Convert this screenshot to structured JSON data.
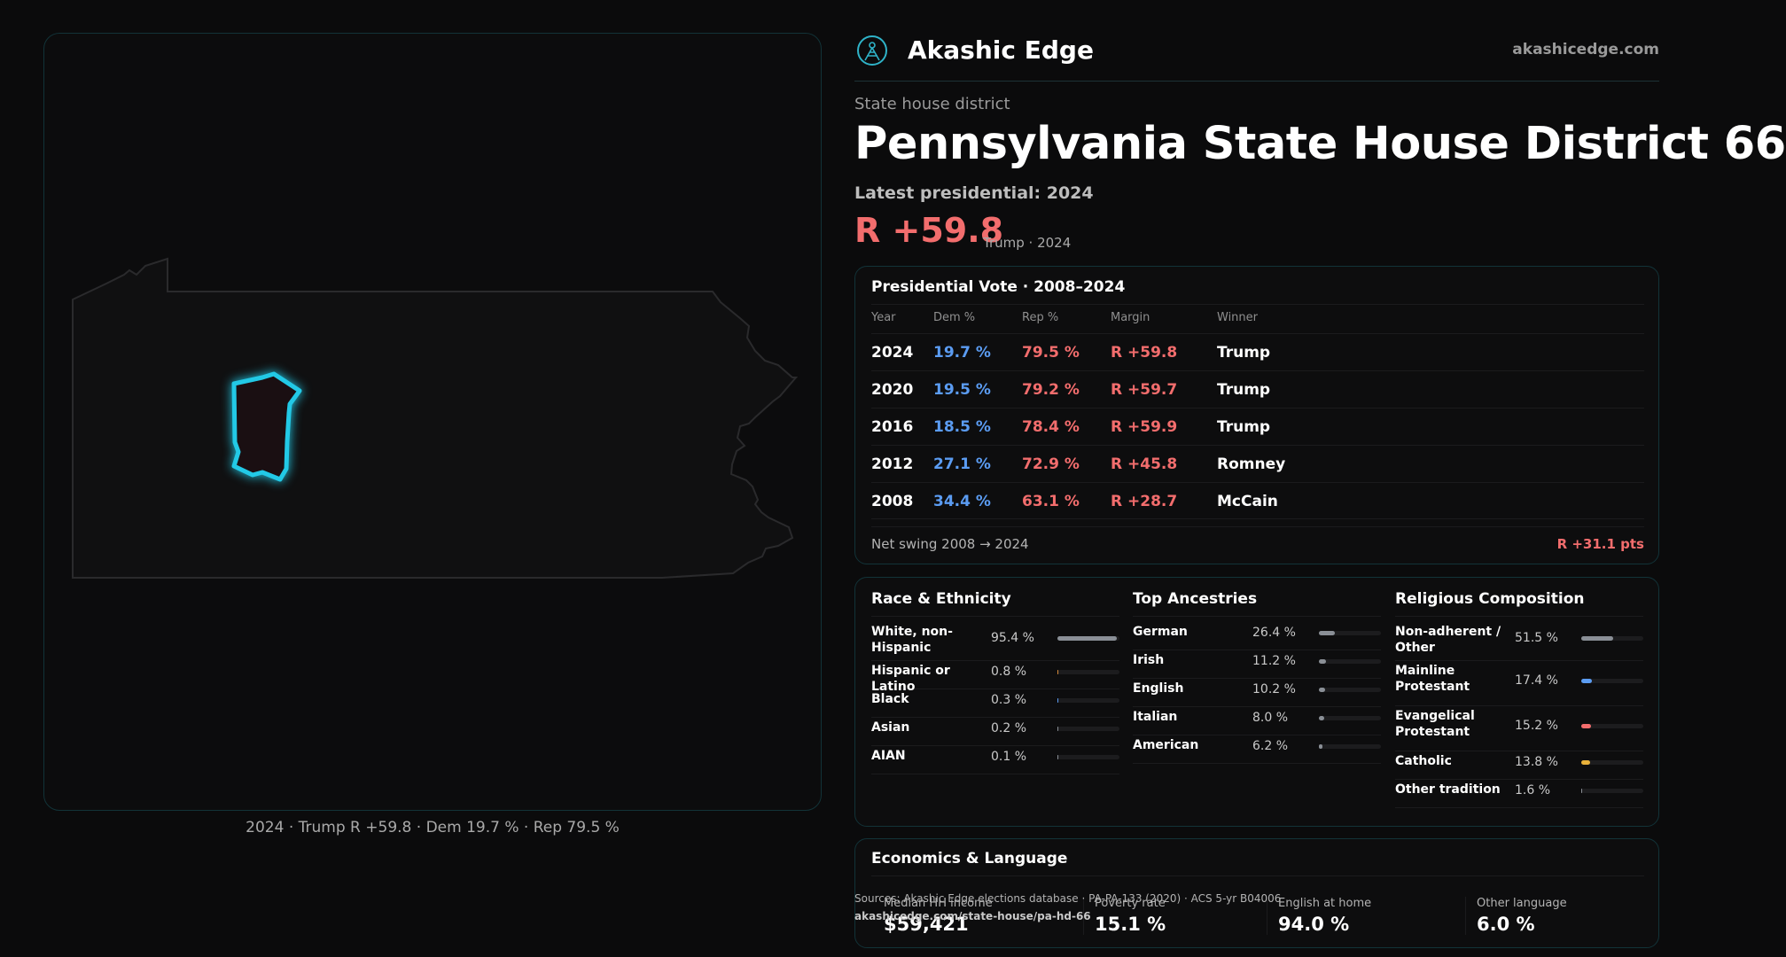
{
  "map": {
    "caption": "2024 · Trump R +59.8 · Dem 19.7 % · Rep 79.5 %",
    "colors": {
      "district_stroke": "#22c9e6",
      "district_fill": "#1a0f12",
      "state_stroke": "#2a2a2c"
    }
  },
  "brand": {
    "name": "Akashic Edge",
    "url": "akashicedge.com"
  },
  "header": {
    "kicker": "State house district",
    "title": "Pennsylvania State House District 66",
    "latest_label": "Latest presidential: 2024",
    "margin": "R +59.8",
    "margin_sub": "Trump · 2024"
  },
  "presidential": {
    "title": "Presidential Vote · 2008–2024",
    "columns": [
      "Year",
      "Dem %",
      "Rep %",
      "Margin",
      "Winner"
    ],
    "rows": [
      {
        "year": "2024",
        "dem": "19.7 %",
        "rep": "79.5 %",
        "margin": "R +59.8",
        "winner": "Trump"
      },
      {
        "year": "2020",
        "dem": "19.5 %",
        "rep": "79.2 %",
        "margin": "R +59.7",
        "winner": "Trump"
      },
      {
        "year": "2016",
        "dem": "18.5 %",
        "rep": "78.4 %",
        "margin": "R +59.9",
        "winner": "Trump"
      },
      {
        "year": "2012",
        "dem": "27.1 %",
        "rep": "72.9 %",
        "margin": "R +45.8",
        "winner": "Romney"
      },
      {
        "year": "2008",
        "dem": "34.4 %",
        "rep": "63.1 %",
        "margin": "R +28.7",
        "winner": "McCain"
      }
    ],
    "net_swing_label": "Net swing 2008 → 2024",
    "net_swing_value": "R +31.1 pts"
  },
  "race": {
    "title": "Race & Ethnicity",
    "items": [
      {
        "label": "White, non-Hispanic",
        "pct": "95.4 %",
        "value": 95.4,
        "color": "#8a8f96"
      },
      {
        "label": "Hispanic or Latino",
        "pct": "0.8 %",
        "value": 0.8,
        "color": "#d4883a"
      },
      {
        "label": "Black",
        "pct": "0.3 %",
        "value": 0.3,
        "color": "#5b9cf2"
      },
      {
        "label": "Asian",
        "pct": "0.2 %",
        "value": 0.2,
        "color": "#8a8f96"
      },
      {
        "label": "AIAN",
        "pct": "0.1 %",
        "value": 0.1,
        "color": "#8a8f96"
      }
    ]
  },
  "ancestry": {
    "title": "Top Ancestries",
    "items": [
      {
        "label": "German",
        "pct": "26.4 %",
        "value": 26.4,
        "color": "#8a8f96"
      },
      {
        "label": "Irish",
        "pct": "11.2 %",
        "value": 11.2,
        "color": "#8a8f96"
      },
      {
        "label": "English",
        "pct": "10.2 %",
        "value": 10.2,
        "color": "#8a8f96"
      },
      {
        "label": "Italian",
        "pct": "8.0 %",
        "value": 8.0,
        "color": "#8a8f96"
      },
      {
        "label": "American",
        "pct": "6.2 %",
        "value": 6.2,
        "color": "#8a8f96"
      }
    ]
  },
  "religion": {
    "title": "Religious Composition",
    "items": [
      {
        "label": "Non-adherent / Other",
        "pct": "51.5 %",
        "value": 51.5,
        "color": "#8a8f96"
      },
      {
        "label": "Mainline Protestant",
        "pct": "17.4 %",
        "value": 17.4,
        "color": "#5b9cf2"
      },
      {
        "label": "Evangelical Protestant",
        "pct": "15.2 %",
        "value": 15.2,
        "color": "#f26d6d"
      },
      {
        "label": "Catholic",
        "pct": "13.8 %",
        "value": 13.8,
        "color": "#e8b13a"
      },
      {
        "label": "Other tradition",
        "pct": "1.6 %",
        "value": 1.6,
        "color": "#8a8f96"
      }
    ]
  },
  "economics": {
    "title": "Economics & Language",
    "items": [
      {
        "label": "Median HH income",
        "value": "$59,421"
      },
      {
        "label": "Poverty rate",
        "value": "15.1 %"
      },
      {
        "label": "English at home",
        "value": "94.0 %"
      },
      {
        "label": "Other language",
        "value": "6.0 %"
      }
    ]
  },
  "footer": {
    "sources": "Sources: Akashic Edge elections database · PA-PA-133 (2020) · ACS 5-yr B04006",
    "url": "akashicedge.com/state-house/pa-hd-66"
  }
}
